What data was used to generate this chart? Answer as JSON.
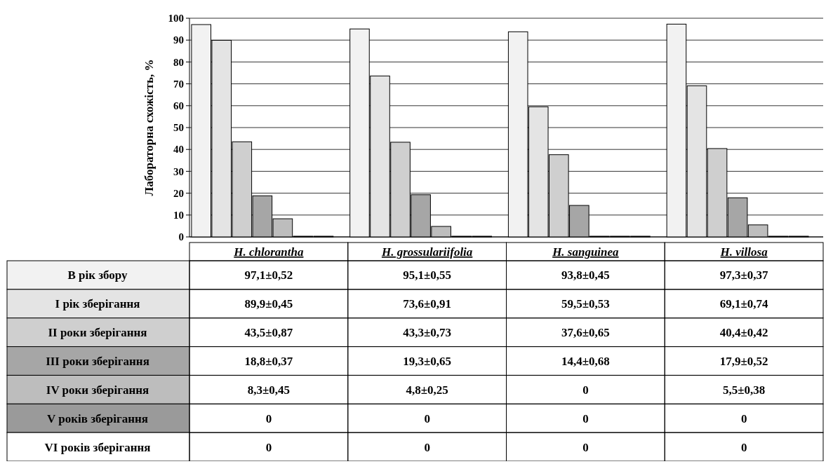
{
  "chart_data": {
    "type": "bar",
    "ylabel": "Лабораторна схожість, %",
    "categories": [
      "H. chlorantha",
      "H. grossulariifolia",
      "H. sanguinea",
      "H. villosa"
    ],
    "ylim": [
      0,
      100
    ],
    "yticks": [
      0,
      10,
      20,
      30,
      40,
      50,
      60,
      70,
      80,
      90,
      100
    ],
    "grid": "y",
    "legend": "bottom",
    "series": [
      {
        "name": "В рік збору",
        "color": "#f2f2f2",
        "values": [
          97.1,
          95.1,
          93.8,
          97.3
        ],
        "value_labels": [
          "97,1±0,52",
          "95,1±0,55",
          "93,8±0,45",
          "97,3±0,37"
        ]
      },
      {
        "name": "I рік зберігання",
        "color": "#e4e4e4",
        "values": [
          89.9,
          73.6,
          59.5,
          69.1
        ],
        "value_labels": [
          "89,9±0,45",
          "73,6±0,91",
          "59,5±0,53",
          "69,1±0,74"
        ]
      },
      {
        "name": "II роки зберігання",
        "color": "#cfcfcf",
        "values": [
          43.5,
          43.3,
          37.6,
          40.4
        ],
        "value_labels": [
          "43,5±0,87",
          "43,3±0,73",
          "37,6±0,65",
          "40,4±0,42"
        ]
      },
      {
        "name": "III роки зберігання",
        "color": "#a6a6a6",
        "values": [
          18.8,
          19.3,
          14.4,
          17.9
        ],
        "value_labels": [
          "18,8±0,37",
          "19,3±0,65",
          "14,4±0,68",
          "17,9±0,52"
        ]
      },
      {
        "name": "IV роки зберігання",
        "color": "#bdbdbd",
        "values": [
          8.3,
          4.8,
          0,
          5.5
        ],
        "value_labels": [
          "8,3±0,45",
          "4,8±0,25",
          "0",
          "5,5±0,38"
        ]
      },
      {
        "name": "V років зберігання",
        "color": "#9a9a9a",
        "values": [
          0,
          0,
          0,
          0
        ],
        "value_labels": [
          "0",
          "0",
          "0",
          "0"
        ]
      },
      {
        "name": "VI років зберігання",
        "color": "#ffffff",
        "values": [
          0,
          0,
          0,
          0
        ],
        "value_labels": [
          "0",
          "0",
          "0",
          "0"
        ]
      }
    ]
  }
}
